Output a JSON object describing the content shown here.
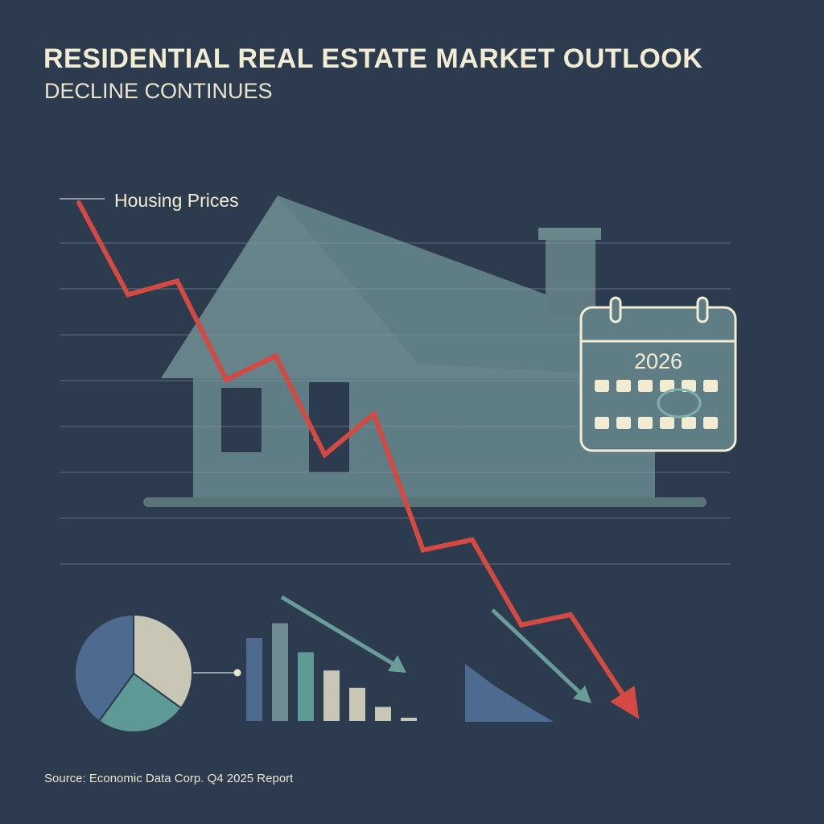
{
  "header": {
    "title": "RESIDENTIAL REAL ESTATE MARKET OUTLOOK",
    "subtitle": "DECLINE CONTINUES"
  },
  "footer": {
    "source": "Source: Economic Data Corp. Q4 2025 Report"
  },
  "calendar": {
    "year": "2026"
  },
  "colors": {
    "background": "#2c3b4e",
    "trend_line": "#d24a41",
    "house": "#6f8d91",
    "text": "#f1ecd2",
    "teal": "#5d9a96",
    "slate_blue": "#4d6b8e",
    "sand": "#c8c6b4"
  },
  "icons": [
    "house-icon",
    "calendar-icon",
    "pie-chart-icon",
    "bar-chart-icon",
    "down-arrow-icon",
    "area-chart-icon"
  ],
  "chart_data": [
    {
      "type": "line",
      "series": [
        {
          "name": "Housing Prices",
          "values": [
            100,
            73,
            77,
            48,
            55,
            26,
            38,
            -2,
            1,
            -24,
            -21,
            -43
          ]
        }
      ],
      "grid": true,
      "legend": "top-left"
    },
    {
      "type": "pie",
      "values": [
        40,
        25,
        35
      ]
    },
    {
      "type": "bar",
      "values": [
        100,
        118,
        83,
        61,
        40,
        17,
        4
      ]
    },
    {
      "type": "area",
      "values": [
        100,
        62,
        30,
        0
      ]
    }
  ]
}
